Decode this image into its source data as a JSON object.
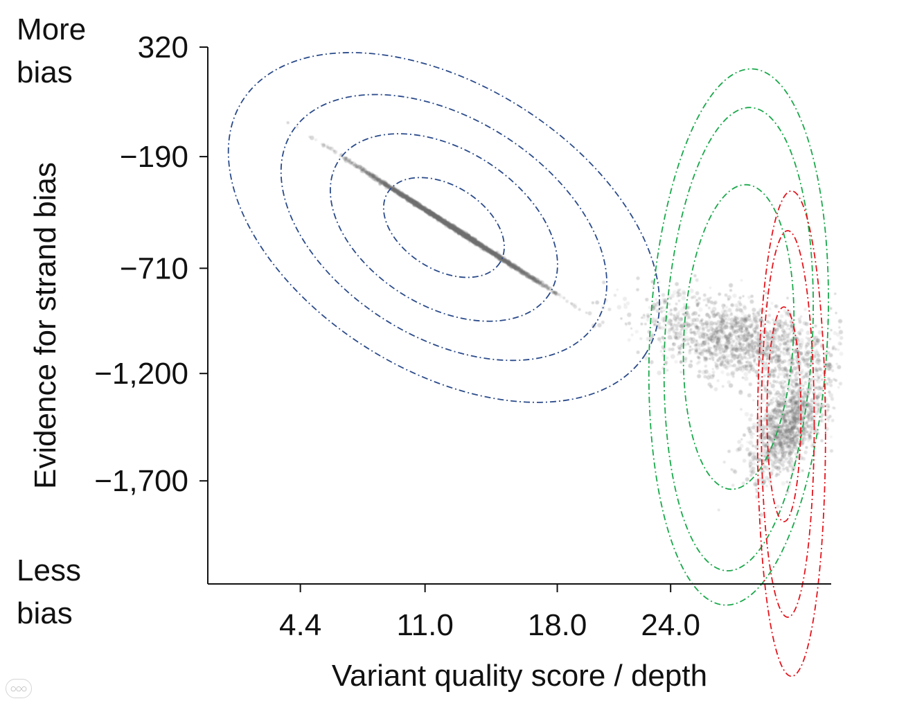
{
  "chart_data": {
    "type": "scatter",
    "xlabel": "Variant quality score / depth",
    "ylabel": "Evidence for strand bias",
    "top_annotation": [
      "More",
      "bias"
    ],
    "bottom_annotation": [
      "Less",
      "bias"
    ],
    "x_ticks": [
      {
        "value": 4.4,
        "label": "4.4"
      },
      {
        "value": 11.0,
        "label": "11.0"
      },
      {
        "value": 18.0,
        "label": "18.0"
      },
      {
        "value": 24.0,
        "label": "24.0"
      }
    ],
    "y_ticks": [
      {
        "value": 320,
        "label": "320"
      },
      {
        "value": -190,
        "label": "−190"
      },
      {
        "value": -710,
        "label": "−710"
      },
      {
        "value": -1200,
        "label": "−1,200"
      },
      {
        "value": -1700,
        "label": "−1,700"
      }
    ],
    "xlim": [
      -0.5,
      32.5
    ],
    "ylim": [
      -2180,
      320
    ],
    "grid": false,
    "point_color": "#6e6e6e",
    "density_clusters": [
      {
        "center_x": 12.3,
        "center_y": -510,
        "spread_x": 2.3,
        "spread_y": 230,
        "angle_deg": 32,
        "count": 2600
      },
      {
        "center_x": 27.7,
        "center_y": -1050,
        "spread_x": 2.6,
        "spread_y": 330,
        "angle_deg": 8,
        "count": 1500
      },
      {
        "center_x": 30.1,
        "center_y": -1450,
        "spread_x": 0.9,
        "spread_y": 380,
        "angle_deg": -6,
        "count": 1100
      }
    ],
    "contour_series": [
      {
        "color": "#2a4a8a",
        "ellipses": [
          {
            "cx": 12.0,
            "cy": -520,
            "rx": 3.5,
            "ry": 195,
            "angle_deg": 32
          },
          {
            "cx": 12.0,
            "cy": -520,
            "rx": 6.6,
            "ry": 365,
            "angle_deg": 32
          },
          {
            "cx": 12.0,
            "cy": -520,
            "rx": 9.5,
            "ry": 510,
            "angle_deg": 32
          },
          {
            "cx": 12.0,
            "cy": -520,
            "rx": 12.6,
            "ry": 665,
            "angle_deg": 32
          }
        ]
      },
      {
        "color": "#19a84a",
        "ellipses": [
          {
            "cx": 27.6,
            "cy": -1030,
            "rx": 2.9,
            "ry": 710,
            "angle_deg": 3
          },
          {
            "cx": 27.6,
            "cy": -1040,
            "rx": 3.9,
            "ry": 1080,
            "angle_deg": 3
          },
          {
            "cx": 27.6,
            "cy": -1030,
            "rx": 4.7,
            "ry": 1250,
            "angle_deg": 3
          }
        ]
      },
      {
        "color": "#e3141c",
        "ellipses": [
          {
            "cx": 30.0,
            "cy": -1390,
            "rx": 0.9,
            "ry": 500,
            "angle_deg": 0
          },
          {
            "cx": 30.2,
            "cy": -1435,
            "rx": 1.4,
            "ry": 900,
            "angle_deg": 0
          },
          {
            "cx": 30.4,
            "cy": -1480,
            "rx": 1.8,
            "ry": 1130,
            "angle_deg": 0
          }
        ]
      }
    ]
  }
}
